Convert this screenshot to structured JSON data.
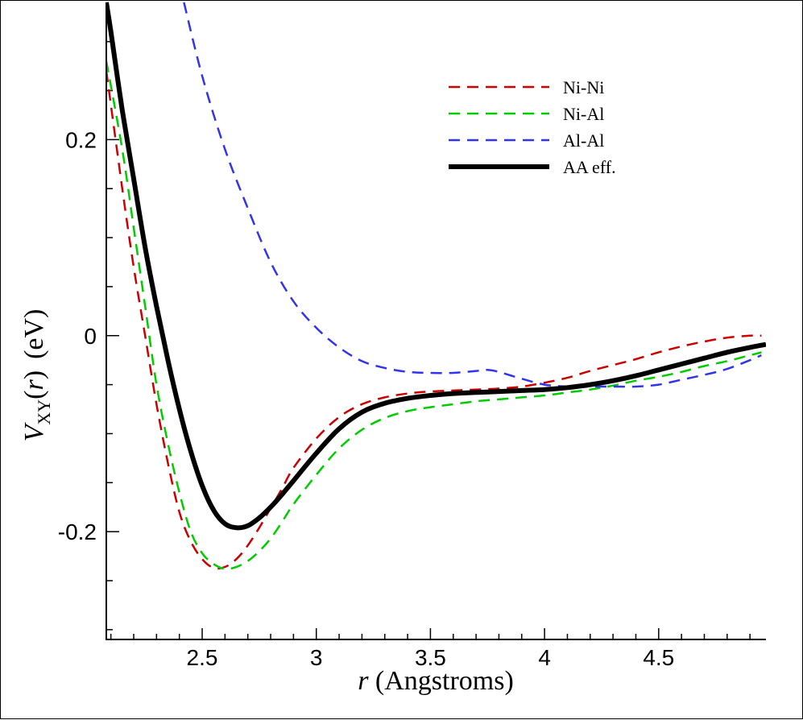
{
  "chart_data": {
    "type": "line",
    "xlabel_var": "r",
    "xlabel_rest": " (Angstroms)",
    "ylabel_var": "V",
    "ylabel_sub": "XY",
    "ylabel_arg_open": "(",
    "ylabel_arg": "r",
    "ylabel_arg_close": ")",
    "ylabel_unit": "(eV)",
    "xlim": [
      2.08,
      4.97
    ],
    "ylim": [
      -0.31,
      0.34
    ],
    "x_ticks": [
      2.5,
      3,
      3.5,
      4,
      4.5
    ],
    "x_tick_labels": [
      "2.5",
      "3",
      "3.5",
      "4",
      "4.5"
    ],
    "y_ticks": [
      -0.2,
      0,
      0.2
    ],
    "y_tick_labels": [
      "-0.2",
      "0",
      "0.2"
    ],
    "legend_position": "top-right",
    "series": [
      {
        "name": "Ni-Ni",
        "color": "#cc0000",
        "style": "dashed",
        "x": [
          2.08,
          2.15,
          2.2,
          2.25,
          2.3,
          2.35,
          2.4,
          2.45,
          2.5,
          2.55,
          2.6,
          2.65,
          2.7,
          2.75,
          2.8,
          2.85,
          2.9,
          3.0,
          3.1,
          3.2,
          3.3,
          3.4,
          3.5,
          3.6,
          3.7,
          3.8,
          3.9,
          4.0,
          4.1,
          4.2,
          4.3,
          4.4,
          4.5,
          4.6,
          4.7,
          4.8,
          4.9,
          4.95
        ],
        "values": [
          0.27,
          0.15,
          0.07,
          0.0,
          -0.07,
          -0.13,
          -0.18,
          -0.21,
          -0.228,
          -0.237,
          -0.236,
          -0.228,
          -0.214,
          -0.196,
          -0.176,
          -0.156,
          -0.135,
          -0.105,
          -0.083,
          -0.07,
          -0.063,
          -0.059,
          -0.057,
          -0.056,
          -0.055,
          -0.054,
          -0.052,
          -0.048,
          -0.043,
          -0.036,
          -0.03,
          -0.024,
          -0.017,
          -0.011,
          -0.006,
          -0.002,
          0.0,
          0.0
        ]
      },
      {
        "name": "Ni-Al",
        "color": "#00cc00",
        "style": "dashed",
        "x": [
          2.08,
          2.15,
          2.2,
          2.25,
          2.3,
          2.35,
          2.4,
          2.45,
          2.5,
          2.55,
          2.6,
          2.65,
          2.7,
          2.75,
          2.8,
          2.85,
          2.9,
          3.0,
          3.1,
          3.2,
          3.3,
          3.4,
          3.5,
          3.6,
          3.7,
          3.8,
          3.9,
          4.0,
          4.1,
          4.2,
          4.3,
          4.4,
          4.5,
          4.6,
          4.7,
          4.8,
          4.9,
          4.95
        ],
        "values": [
          0.28,
          0.19,
          0.11,
          0.03,
          -0.05,
          -0.11,
          -0.16,
          -0.2,
          -0.222,
          -0.233,
          -0.238,
          -0.236,
          -0.23,
          -0.22,
          -0.207,
          -0.19,
          -0.172,
          -0.142,
          -0.115,
          -0.096,
          -0.084,
          -0.077,
          -0.073,
          -0.07,
          -0.067,
          -0.065,
          -0.063,
          -0.061,
          -0.058,
          -0.055,
          -0.051,
          -0.046,
          -0.042,
          -0.037,
          -0.031,
          -0.026,
          -0.02,
          -0.017
        ]
      },
      {
        "name": "Al-Al",
        "color": "#3333ee",
        "style": "dashed",
        "x": [
          2.42,
          2.5,
          2.6,
          2.7,
          2.8,
          2.9,
          3.0,
          3.1,
          3.2,
          3.3,
          3.4,
          3.5,
          3.6,
          3.7,
          3.75,
          3.8,
          3.9,
          4.0,
          4.1,
          4.2,
          4.3,
          4.4,
          4.5,
          4.6,
          4.7,
          4.8,
          4.9,
          4.95
        ],
        "values": [
          0.34,
          0.265,
          0.19,
          0.13,
          0.075,
          0.035,
          0.008,
          -0.012,
          -0.026,
          -0.033,
          -0.037,
          -0.038,
          -0.038,
          -0.036,
          -0.035,
          -0.037,
          -0.044,
          -0.05,
          -0.052,
          -0.052,
          -0.052,
          -0.052,
          -0.05,
          -0.045,
          -0.04,
          -0.034,
          -0.025,
          -0.02
        ]
      },
      {
        "name": "AA eff.",
        "color": "#000000",
        "style": "solid",
        "x": [
          2.08,
          2.1,
          2.15,
          2.2,
          2.25,
          2.3,
          2.35,
          2.4,
          2.45,
          2.5,
          2.55,
          2.6,
          2.65,
          2.7,
          2.75,
          2.8,
          2.85,
          2.9,
          3.0,
          3.1,
          3.2,
          3.3,
          3.4,
          3.5,
          3.6,
          3.7,
          3.8,
          3.9,
          4.0,
          4.1,
          4.2,
          4.3,
          4.4,
          4.5,
          4.6,
          4.7,
          4.8,
          4.9,
          4.97
        ],
        "values": [
          0.34,
          0.31,
          0.23,
          0.16,
          0.09,
          0.03,
          -0.025,
          -0.075,
          -0.118,
          -0.153,
          -0.178,
          -0.192,
          -0.196,
          -0.194,
          -0.186,
          -0.175,
          -0.162,
          -0.148,
          -0.12,
          -0.095,
          -0.078,
          -0.069,
          -0.064,
          -0.061,
          -0.059,
          -0.058,
          -0.057,
          -0.056,
          -0.055,
          -0.053,
          -0.05,
          -0.046,
          -0.041,
          -0.035,
          -0.029,
          -0.023,
          -0.017,
          -0.012,
          -0.009
        ]
      }
    ]
  }
}
